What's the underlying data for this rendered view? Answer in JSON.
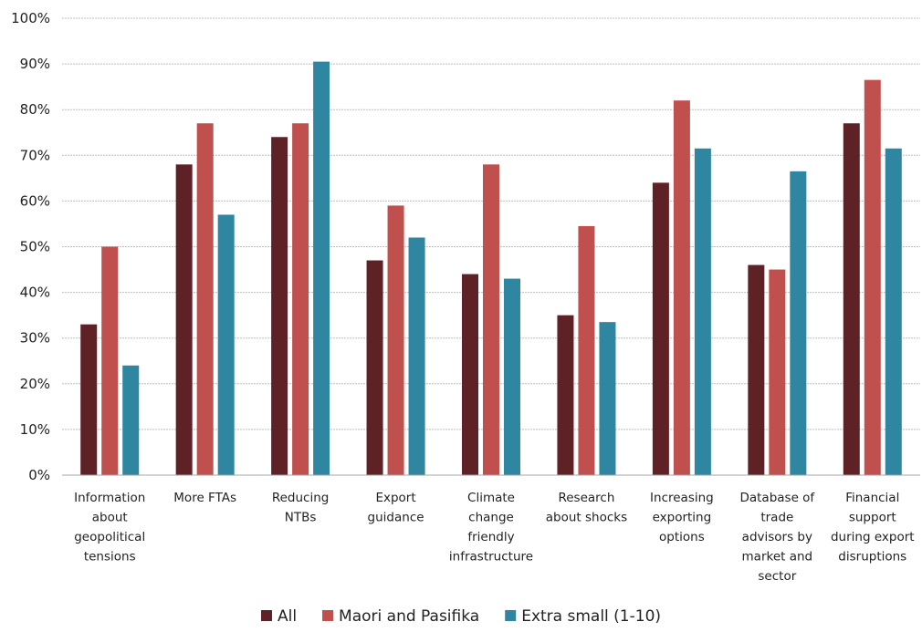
{
  "chart_data": {
    "type": "bar",
    "categories": [
      [
        "Information",
        "about",
        "geopolitical",
        "tensions"
      ],
      [
        "More FTAs"
      ],
      [
        "Reducing",
        "NTBs"
      ],
      [
        "Export",
        "guidance"
      ],
      [
        "Climate",
        "change",
        "friendly",
        "infrastructure"
      ],
      [
        "Research",
        "about shocks"
      ],
      [
        "Increasing",
        "exporting",
        "options"
      ],
      [
        "Database of",
        "trade",
        "advisors by",
        "market and",
        "sector"
      ],
      [
        "Financial",
        "support",
        "during export",
        "disruptions"
      ]
    ],
    "series": [
      {
        "name": "All",
        "color": "#5e2126",
        "values": [
          33,
          68,
          74,
          47,
          44,
          35,
          64,
          46,
          77
        ]
      },
      {
        "name": "Maori and Pasifika",
        "color": "#c0504d",
        "values": [
          50,
          77,
          77,
          59,
          68,
          54.5,
          82,
          45,
          86.5
        ]
      },
      {
        "name": "Extra small (1-10)",
        "color": "#2e86a0",
        "values": [
          24,
          57,
          90.5,
          52,
          43,
          33.5,
          71.5,
          66.5,
          71.5
        ]
      }
    ],
    "ylim": [
      0,
      100
    ],
    "yticks": [
      "0%",
      "10%",
      "20%",
      "30%",
      "40%",
      "50%",
      "60%",
      "70%",
      "80%",
      "90%",
      "100%"
    ],
    "grid": true,
    "legend_position": "bottom"
  }
}
